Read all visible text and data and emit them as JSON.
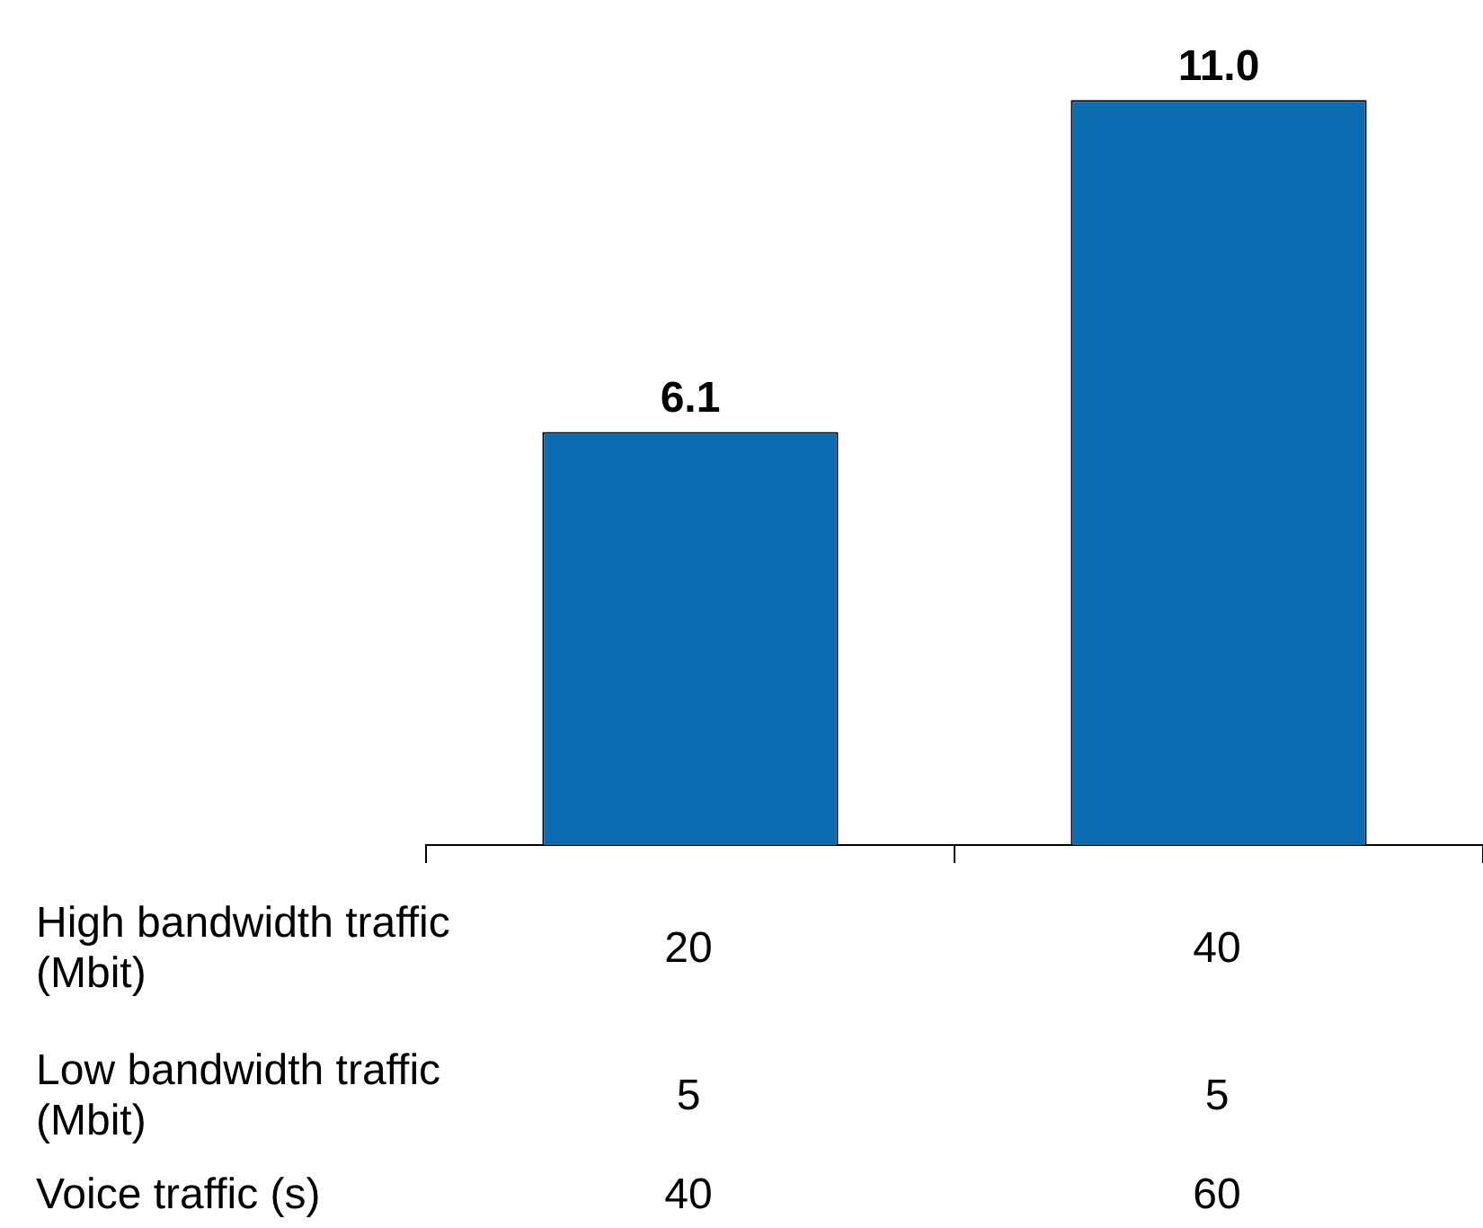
{
  "chart_data": {
    "type": "bar",
    "categories": [
      null,
      null
    ],
    "values": [
      6.1,
      11.0
    ],
    "value_labels": [
      "6.1",
      "11.0"
    ],
    "color": "#0a6bb0",
    "grid": false,
    "legend": false,
    "tick_labels": false,
    "annotations": [
      "High bandwidth traffic (Mbit)",
      "20",
      "40",
      "Low bandwidth traffic (Mbit)",
      "5",
      "5",
      "Voice traffic (s)",
      "40",
      "60"
    ]
  }
}
